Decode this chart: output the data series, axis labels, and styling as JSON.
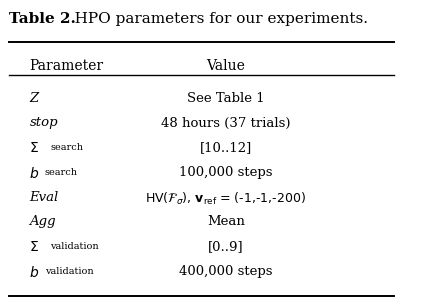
{
  "title_bold": "Table 2.",
  "title_rest": "   HPO parameters for our experiments.",
  "col_headers": [
    "Parameter",
    "Value"
  ],
  "bg_color": "#ffffff",
  "text_color": "#000000",
  "fontsize": 9.5,
  "title_fontsize": 11,
  "header_fontsize": 10
}
